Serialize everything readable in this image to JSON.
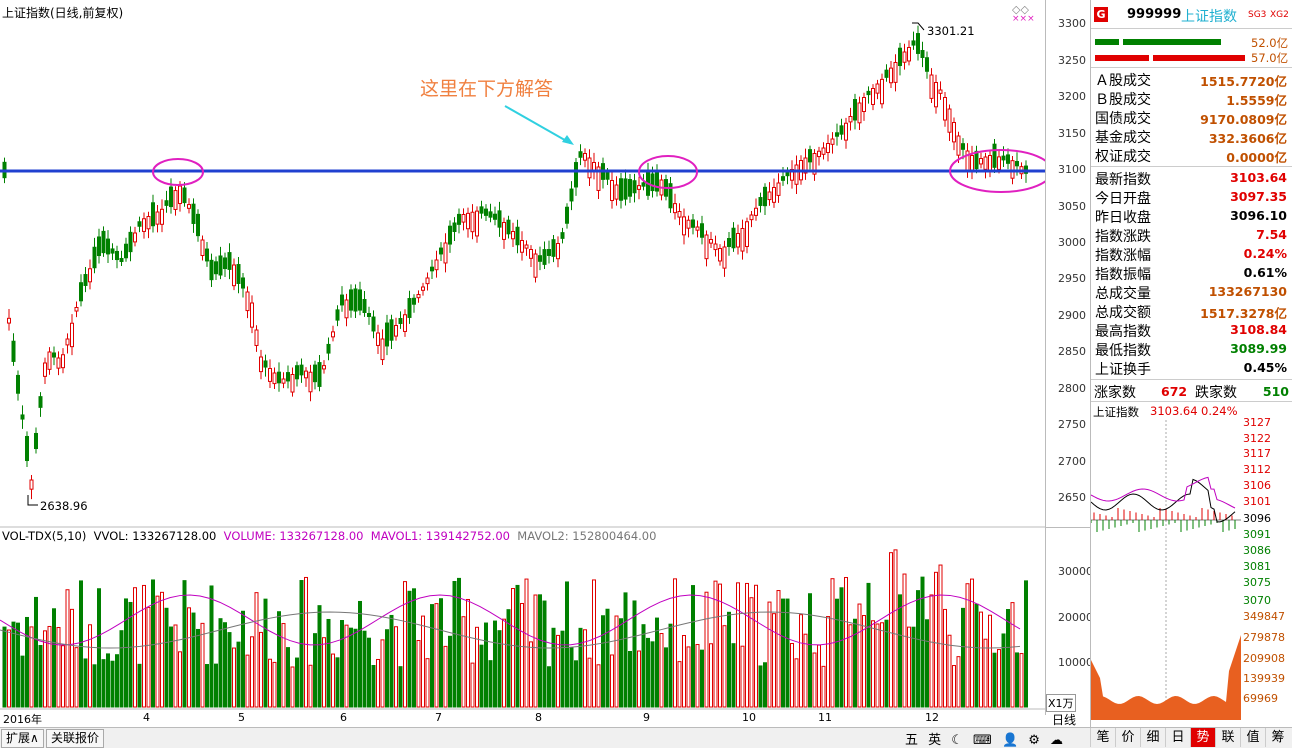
{
  "chart": {
    "title": "上证指数(日线,前复权)",
    "high_annotation": "3301.21",
    "low_annotation": "2638.96",
    "annotation_text": "这里在下方解答",
    "y_labels": [
      "3300",
      "3250",
      "3200",
      "3150",
      "3100",
      "3050",
      "3000",
      "2950",
      "2900",
      "2850",
      "2800",
      "2750",
      "2700",
      "2650"
    ],
    "month_labels": [
      "2016年",
      "4",
      "5",
      "6",
      "7",
      "8",
      "9",
      "10",
      "11",
      "12"
    ],
    "vol_header": {
      "name": "VOL-TDX(5,10)",
      "vvol": "VVOL: 133267128.00",
      "volume": "VOLUME: 133267128.00",
      "mavol1": "MAVOL1: 139142752.00",
      "mavol2": "MAVOL2: 152800464.00"
    },
    "vol_y_labels": [
      "30000",
      "20000",
      "10000"
    ],
    "vol_unit": "X1万",
    "period": "日线"
  },
  "panel": {
    "code": "999999",
    "name": "上证指数",
    "tags": [
      "SG3",
      "XG2"
    ],
    "g_icon": "G",
    "bar1_value": "52.0亿",
    "bar2_value": "57.0亿",
    "rows": [
      {
        "k": "Ａ股成交",
        "v": "1515.7720亿",
        "c": "org"
      },
      {
        "k": "Ｂ股成交",
        "v": "1.5559亿",
        "c": "org"
      },
      {
        "k": "国债成交",
        "v": "9170.0809亿",
        "c": "org"
      },
      {
        "k": "基金成交",
        "v": "332.3606亿",
        "c": "org"
      },
      {
        "k": "权证成交",
        "v": "0.0000亿",
        "c": "org"
      },
      {
        "k": "最新指数",
        "v": "3103.64",
        "c": "red"
      },
      {
        "k": "今日开盘",
        "v": "3097.35",
        "c": "red"
      },
      {
        "k": "昨日收盘",
        "v": "3096.10",
        "c": "blk"
      },
      {
        "k": "指数涨跌",
        "v": "7.54",
        "c": "red"
      },
      {
        "k": "指数涨幅",
        "v": "0.24%",
        "c": "red"
      },
      {
        "k": "指数振幅",
        "v": "0.61%",
        "c": "blk"
      },
      {
        "k": "总成交量",
        "v": "133267130",
        "c": "org"
      },
      {
        "k": "总成交额",
        "v": "1517.3278亿",
        "c": "org"
      },
      {
        "k": "最高指数",
        "v": "3108.84",
        "c": "red"
      },
      {
        "k": "最低指数",
        "v": "3089.99",
        "c": "grn"
      },
      {
        "k": "上证换手",
        "v": "0.45%",
        "c": "blk"
      }
    ],
    "up_label": "涨家数",
    "up_count": "672",
    "down_label": "跌家数",
    "down_count": "510",
    "mini_title": "上证指数",
    "mini_price": "3103.64",
    "mini_pct": "0.24%",
    "mini_price_labels": [
      "3127",
      "3122",
      "3117",
      "3112",
      "3106",
      "3101",
      "3096",
      "3091",
      "3086",
      "3081",
      "3075",
      "3070"
    ],
    "mini_vol_labels": [
      "349847",
      "279878",
      "209908",
      "139939",
      "69969"
    ]
  },
  "bottom": {
    "tab1": "扩展∧",
    "tab2": "关联报价",
    "status_icons": "五 英 ☾ ⌨ 👤 ⚙ ☁",
    "panel_tabs": [
      "笔",
      "价",
      "细",
      "日",
      "势",
      "联",
      "值",
      "筹"
    ]
  },
  "colors": {
    "up": "#e00000",
    "down": "#008000",
    "support_line": "#2040d0",
    "circle": "#e020c0",
    "arrow": "#30d0e0",
    "annotation": "#f08040"
  }
}
